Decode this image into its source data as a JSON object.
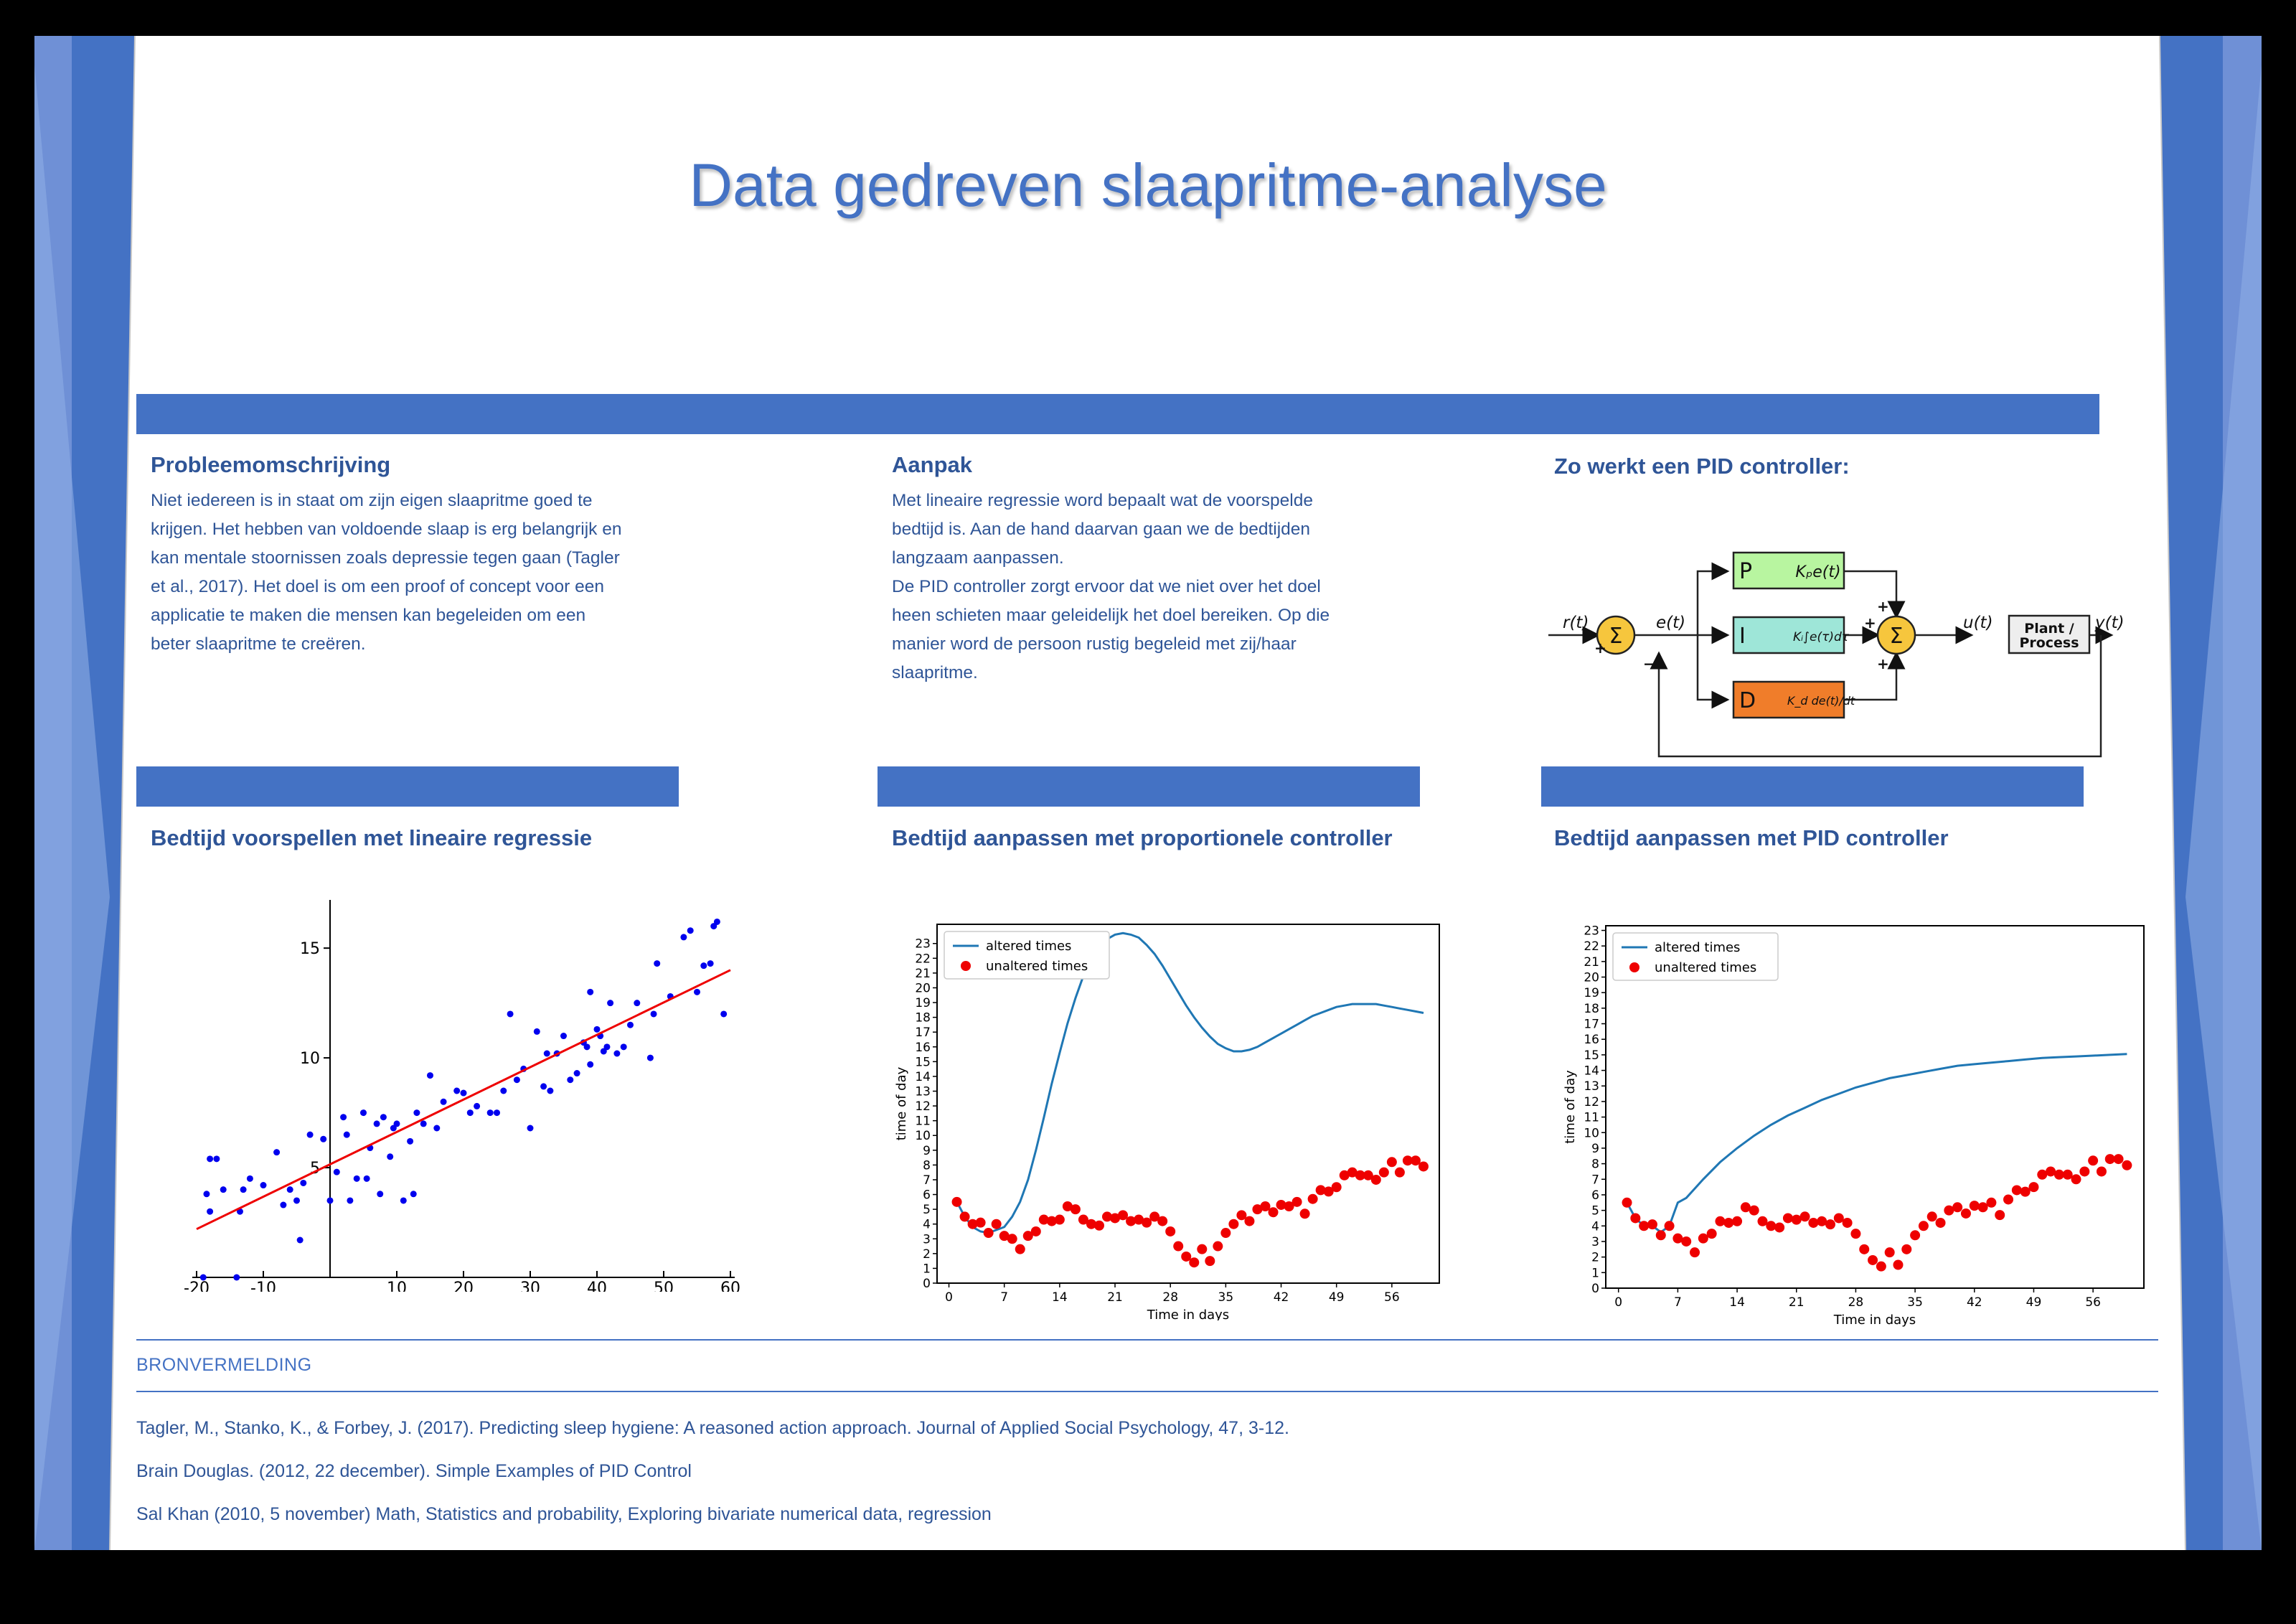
{
  "title": "Data gedreven slaapritme-analyse",
  "colors": {
    "accent": "#4472c4",
    "text": "#2f5597",
    "point": "#0000ee",
    "regression": "#ee0000",
    "altered": "#1f77b4",
    "unaltered": "#ee0000",
    "p_block": "#b8f5a0",
    "i_block": "#9ee6d8",
    "d_block": "#f07d2a",
    "sum": "#f6c63d"
  },
  "sections": {
    "problem": {
      "heading": "Probleemomschrijving",
      "lines": [
        "Niet iedereen is in staat om zijn eigen slaapritme goed te",
        "krijgen. Het hebben van voldoende slaap is erg belangrijk en",
        "kan mentale stoornissen zoals depressie tegen gaan (Tagler",
        "et al., 2017). Het doel is om een proof of concept voor een",
        "applicatie te maken die mensen kan begeleiden om een",
        "beter slaapritme te creëren."
      ]
    },
    "approach": {
      "heading": "Aanpak",
      "lines": [
        "Met lineaire regressie word bepaalt wat de voorspelde",
        "bedtijd is. Aan de hand daarvan gaan we de bedtijden",
        "langzaam aanpassen.",
        "De PID controller zorgt ervoor dat we niet over het doel",
        "heen schieten  maar geleidelijk het doel bereiken. Op die",
        "manier word de persoon rustig begeleid met zij/haar",
        "slaapritme."
      ]
    },
    "pid": {
      "heading": "Zo werkt een PID controller:",
      "r": "r(t)",
      "e": "e(t)",
      "u": "u(t)",
      "y": "y(t)",
      "p_letter": "P",
      "i_letter": "I",
      "d_letter": "D",
      "p_term": "Kₚe(t)",
      "i_term": "Kᵢ∫e(τ)dτ",
      "d_term": "K_d de(t)/dt",
      "sum_symbol": "Σ",
      "plus": "+",
      "minus": "−",
      "plant_line1": "Plant /",
      "plant_line2": "Process"
    },
    "regression": {
      "heading": "Bedtijd voorspellen met lineaire regressie"
    },
    "proportional": {
      "heading": "Bedtijd aanpassen met proportionele controller"
    },
    "pidchart": {
      "heading": "Bedtijd aanpassen met PID controller"
    }
  },
  "references": {
    "heading": "BRONVERMELDING",
    "items": [
      "Tagler, M., Stanko, K., & Forbey, J. (2017). Predicting sleep hygiene: A reasoned action approach. Journal of Applied Social Psychology, 47, 3-12.",
      "Brain Douglas. (2012, 22 december). Simple Examples of PID Control",
      "Sal Khan (2010, 5 november) Math, Statistics and probability, Exploring bivariate numerical data,  regression"
    ]
  },
  "chart_data": [
    {
      "id": "regression",
      "type": "scatter",
      "xlim": [
        -20,
        60
      ],
      "ylim": [
        0,
        17
      ],
      "x_ticks": [
        -20,
        -10,
        10,
        20,
        30,
        40,
        50,
        60
      ],
      "y_ticks": [
        5,
        10,
        15
      ],
      "x_tick_labels": [
        "-20",
        "-10",
        "10",
        "20",
        "30",
        "40",
        "50",
        "60"
      ],
      "y_tick_labels": [
        "5",
        "10",
        "15"
      ],
      "line": {
        "x": [
          -20,
          60
        ],
        "y": [
          2.2,
          14.0
        ]
      },
      "points": [
        [
          -19,
          0
        ],
        [
          -18.5,
          3.8
        ],
        [
          -18,
          5.4
        ],
        [
          -17,
          5.4
        ],
        [
          -18,
          3
        ],
        [
          -16,
          4
        ],
        [
          -14,
          0
        ],
        [
          -13.5,
          3
        ],
        [
          -13,
          4
        ],
        [
          -12,
          4.5
        ],
        [
          -10,
          4.2
        ],
        [
          -8,
          5.7
        ],
        [
          -7,
          3.3
        ],
        [
          -6,
          4
        ],
        [
          -5,
          3.5
        ],
        [
          -4.5,
          1.7
        ],
        [
          -4,
          4.3
        ],
        [
          -3,
          6.5
        ],
        [
          -1,
          6.3
        ],
        [
          0,
          3.5
        ],
        [
          1,
          4.8
        ],
        [
          2,
          7.3
        ],
        [
          2.5,
          6.5
        ],
        [
          3,
          3.5
        ],
        [
          4,
          4.5
        ],
        [
          5,
          7.5
        ],
        [
          5.5,
          4.5
        ],
        [
          6,
          5.9
        ],
        [
          7,
          7
        ],
        [
          7.5,
          3.8
        ],
        [
          8,
          7.3
        ],
        [
          9,
          5.5
        ],
        [
          9.5,
          6.8
        ],
        [
          10,
          7
        ],
        [
          11,
          3.5
        ],
        [
          12,
          6.2
        ],
        [
          12.5,
          3.8
        ],
        [
          13,
          7.5
        ],
        [
          14,
          7
        ],
        [
          15,
          9.2
        ],
        [
          16,
          6.8
        ],
        [
          17,
          8
        ],
        [
          19,
          8.5
        ],
        [
          20,
          8.4
        ],
        [
          21,
          7.5
        ],
        [
          22,
          7.8
        ],
        [
          24,
          7.5
        ],
        [
          25,
          7.5
        ],
        [
          26,
          8.5
        ],
        [
          27,
          12
        ],
        [
          28,
          9
        ],
        [
          29,
          9.5
        ],
        [
          30,
          6.8
        ],
        [
          31,
          11.2
        ],
        [
          32,
          8.7
        ],
        [
          32.5,
          10.2
        ],
        [
          33,
          8.5
        ],
        [
          34,
          10.2
        ],
        [
          35,
          11
        ],
        [
          36,
          9
        ],
        [
          37,
          9.3
        ],
        [
          38,
          10.7
        ],
        [
          38.5,
          10.5
        ],
        [
          39,
          13
        ],
        [
          39,
          9.7
        ],
        [
          40,
          11.3
        ],
        [
          40.5,
          11
        ],
        [
          41,
          10.3
        ],
        [
          41.5,
          10.5
        ],
        [
          42,
          12.5
        ],
        [
          43,
          10.2
        ],
        [
          44,
          10.5
        ],
        [
          45,
          11.5
        ],
        [
          46,
          12.5
        ],
        [
          48,
          10
        ],
        [
          48.5,
          12
        ],
        [
          49,
          14.3
        ],
        [
          51,
          12.8
        ],
        [
          53,
          15.5
        ],
        [
          54,
          15.8
        ],
        [
          55,
          13
        ],
        [
          56,
          14.2
        ],
        [
          57,
          14.3
        ],
        [
          57.5,
          16
        ],
        [
          58,
          16.2
        ],
        [
          59,
          12
        ]
      ]
    },
    {
      "id": "proportional",
      "type": "line",
      "xlabel": "Time in days",
      "ylabel": "time of day",
      "xlim": [
        -1.5,
        62
      ],
      "ylim": [
        0,
        24.3
      ],
      "x_ticks": [
        0,
        7,
        14,
        21,
        28,
        35,
        42,
        49,
        56
      ],
      "y_ticks": [
        0,
        1,
        2,
        3,
        4,
        5,
        6,
        7,
        8,
        9,
        10,
        11,
        12,
        13,
        14,
        15,
        16,
        17,
        18,
        19,
        20,
        21,
        22,
        23
      ],
      "legend": [
        "altered times",
        "unaltered times"
      ],
      "series": [
        {
          "name": "altered times",
          "x": [
            1,
            2,
            3,
            4,
            5,
            6,
            7,
            8,
            9,
            10,
            11,
            12,
            13,
            14,
            15,
            16,
            17,
            18,
            19,
            20,
            21,
            22,
            23,
            24,
            25,
            26,
            27,
            28,
            29,
            30,
            31,
            32,
            33,
            34,
            35,
            36,
            37,
            38,
            39,
            40,
            41,
            42,
            43,
            44,
            45,
            46,
            47,
            48,
            49,
            50,
            51,
            52,
            53,
            54,
            55,
            56,
            57,
            58,
            59,
            60
          ],
          "y": [
            5.5,
            4.5,
            3.8,
            3.5,
            3.4,
            3.6,
            3.8,
            4.5,
            5.5,
            7.0,
            9.0,
            11.2,
            13.5,
            15.6,
            17.6,
            19.3,
            20.8,
            21.9,
            22.8,
            23.3,
            23.6,
            23.7,
            23.6,
            23.4,
            22.9,
            22.3,
            21.5,
            20.6,
            19.7,
            18.8,
            18.0,
            17.3,
            16.7,
            16.2,
            15.9,
            15.7,
            15.7,
            15.8,
            16.0,
            16.3,
            16.6,
            16.9,
            17.2,
            17.5,
            17.8,
            18.1,
            18.3,
            18.5,
            18.7,
            18.8,
            18.9,
            18.9,
            18.9,
            18.9,
            18.8,
            18.7,
            18.6,
            18.5,
            18.4,
            18.3
          ]
        },
        {
          "name": "unaltered times",
          "x": [
            1,
            2,
            3,
            4,
            5,
            6,
            7,
            8,
            9,
            10,
            11,
            12,
            13,
            14,
            15,
            16,
            17,
            18,
            19,
            20,
            21,
            22,
            23,
            24,
            25,
            26,
            27,
            28,
            29,
            30,
            31,
            32,
            33,
            34,
            35,
            36,
            37,
            38,
            39,
            40,
            41,
            42,
            43,
            44,
            45,
            46,
            47,
            48,
            49,
            50,
            51,
            52,
            53,
            54,
            55,
            56,
            57,
            58,
            59,
            60
          ],
          "y": [
            5.5,
            4.5,
            4.0,
            4.1,
            3.4,
            4.0,
            3.2,
            3.0,
            2.3,
            3.2,
            3.5,
            4.3,
            4.2,
            4.3,
            5.2,
            5.0,
            4.3,
            4.0,
            3.9,
            4.5,
            4.4,
            4.6,
            4.2,
            4.3,
            4.1,
            4.5,
            4.2,
            3.5,
            2.5,
            1.8,
            1.4,
            2.3,
            1.5,
            2.5,
            3.4,
            4.0,
            4.6,
            4.2,
            5.0,
            5.2,
            4.8,
            5.3,
            5.2,
            5.5,
            4.7,
            5.7,
            6.3,
            6.2,
            6.5,
            7.3,
            7.5,
            7.3,
            7.3,
            7.0,
            7.5,
            8.2,
            7.5,
            8.3,
            8.3,
            7.9
          ]
        }
      ]
    },
    {
      "id": "pidchart",
      "type": "line",
      "xlabel": "Time in days",
      "ylabel": "time of day",
      "xlim": [
        -1.5,
        62
      ],
      "ylim": [
        0,
        23.3
      ],
      "x_ticks": [
        0,
        7,
        14,
        21,
        28,
        35,
        42,
        49,
        56
      ],
      "y_ticks": [
        0,
        1,
        2,
        3,
        4,
        5,
        6,
        7,
        8,
        9,
        10,
        11,
        12,
        13,
        14,
        15,
        16,
        17,
        18,
        19,
        20,
        21,
        22,
        23
      ],
      "legend": [
        "altered times",
        "unaltered times"
      ],
      "series": [
        {
          "name": "altered times",
          "x": [
            1,
            2,
            3,
            4,
            5,
            6,
            7,
            8,
            10,
            12,
            14,
            16,
            18,
            20,
            22,
            24,
            26,
            28,
            30,
            32,
            34,
            36,
            38,
            40,
            42,
            44,
            46,
            48,
            50,
            52,
            54,
            56,
            58,
            60
          ],
          "y": [
            5.5,
            4.5,
            4.0,
            4.0,
            3.6,
            4.0,
            5.5,
            5.8,
            7.0,
            8.1,
            9.0,
            9.8,
            10.5,
            11.1,
            11.6,
            12.1,
            12.5,
            12.9,
            13.2,
            13.5,
            13.7,
            13.9,
            14.1,
            14.3,
            14.4,
            14.5,
            14.6,
            14.7,
            14.8,
            14.85,
            14.9,
            14.95,
            15.0,
            15.05
          ]
        },
        {
          "name": "unaltered times",
          "x": [
            1,
            2,
            3,
            4,
            5,
            6,
            7,
            8,
            9,
            10,
            11,
            12,
            13,
            14,
            15,
            16,
            17,
            18,
            19,
            20,
            21,
            22,
            23,
            24,
            25,
            26,
            27,
            28,
            29,
            30,
            31,
            32,
            33,
            34,
            35,
            36,
            37,
            38,
            39,
            40,
            41,
            42,
            43,
            44,
            45,
            46,
            47,
            48,
            49,
            50,
            51,
            52,
            53,
            54,
            55,
            56,
            57,
            58,
            59,
            60
          ],
          "y": [
            5.5,
            4.5,
            4.0,
            4.1,
            3.4,
            4.0,
            3.2,
            3.0,
            2.3,
            3.2,
            3.5,
            4.3,
            4.2,
            4.3,
            5.2,
            5.0,
            4.3,
            4.0,
            3.9,
            4.5,
            4.4,
            4.6,
            4.2,
            4.3,
            4.1,
            4.5,
            4.2,
            3.5,
            2.5,
            1.8,
            1.4,
            2.3,
            1.5,
            2.5,
            3.4,
            4.0,
            4.6,
            4.2,
            5.0,
            5.2,
            4.8,
            5.3,
            5.2,
            5.5,
            4.7,
            5.7,
            6.3,
            6.2,
            6.5,
            7.3,
            7.5,
            7.3,
            7.3,
            7.0,
            7.5,
            8.2,
            7.5,
            8.3,
            8.3,
            7.9
          ]
        }
      ]
    }
  ]
}
